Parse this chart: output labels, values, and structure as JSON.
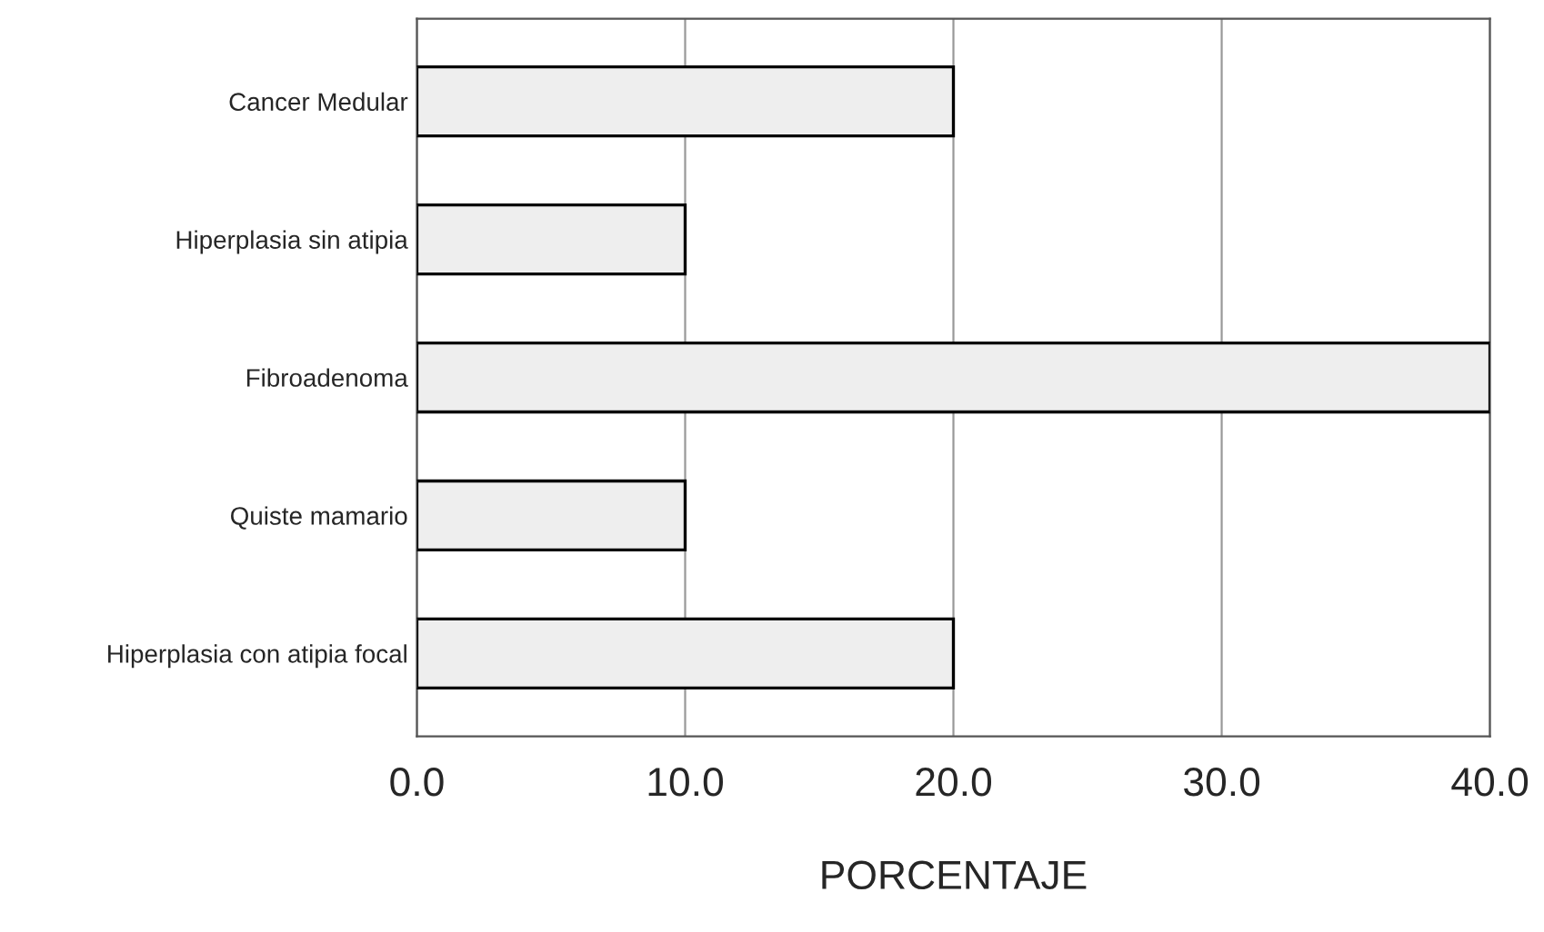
{
  "chart_data": {
    "type": "bar",
    "orientation": "horizontal",
    "xlabel": "PORCENTAJE",
    "categories": [
      "Cancer Medular",
      "Hiperplasia sin atipia",
      "Fibroadenoma",
      "Quiste mamario",
      "Hiperplasia con atipia focal"
    ],
    "values": [
      20,
      10,
      40,
      10,
      20
    ],
    "color": "#eeeeee",
    "xlim": [
      0,
      40
    ],
    "xticks": [
      {
        "value": 0,
        "label": "0.0"
      },
      {
        "value": 10,
        "label": "10.0"
      },
      {
        "value": 20,
        "label": "20.0"
      },
      {
        "value": 30,
        "label": "30.0"
      },
      {
        "value": 40,
        "label": "40.0"
      }
    ],
    "grid": "x"
  }
}
